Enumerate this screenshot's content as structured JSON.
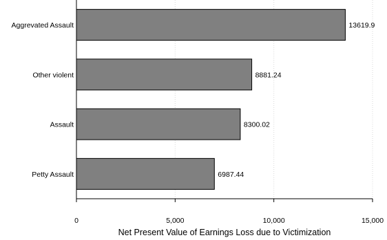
{
  "chart_data": {
    "type": "bar",
    "orientation": "horizontal",
    "categories": [
      "Aggrevated Assault",
      "Other violent",
      "Assault",
      "Petty Assault"
    ],
    "values": [
      13619.9,
      8881.24,
      8300.02,
      6987.44
    ],
    "value_labels": [
      "13619.9",
      "8881.24",
      "8300.02",
      "6987.44"
    ],
    "title": "",
    "xlabel": "Net Present Value of Earnings Loss due to Victimization",
    "ylabel": "",
    "xlim": [
      0,
      15000
    ],
    "xticks": [
      0,
      5000,
      10000,
      15000
    ],
    "xtick_labels": [
      "0",
      "5,000",
      "10,000",
      "15,000"
    ],
    "grid": "vertical dotted",
    "bar_color": "#808080",
    "bar_edge_color": "#000000"
  }
}
